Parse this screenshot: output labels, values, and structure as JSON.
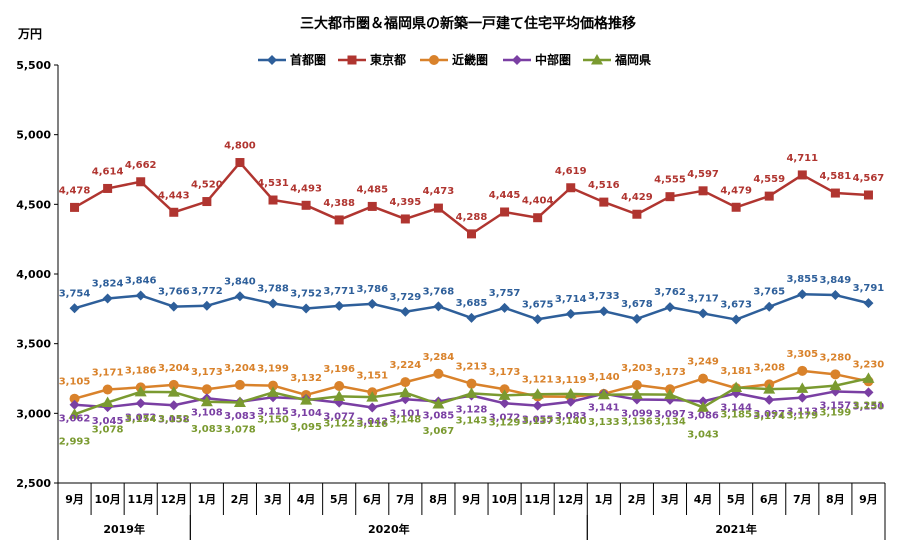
{
  "chart_data": {
    "type": "line",
    "title": "三大都市圏＆福岡県の新築一戸建て住宅平均価格推移",
    "ylabel": "万円",
    "ylim": [
      2500,
      5500
    ],
    "yticks": [
      "2,500",
      "3,000",
      "3,500",
      "4,000",
      "4,500",
      "5,000",
      "5,500"
    ],
    "ytick_values": [
      2500,
      3000,
      3500,
      4000,
      4500,
      5000,
      5500
    ],
    "categories": [
      "9月",
      "10月",
      "11月",
      "12月",
      "1月",
      "2月",
      "3月",
      "4月",
      "5月",
      "6月",
      "7月",
      "8月",
      "9月",
      "10月",
      "11月",
      "12月",
      "1月",
      "2月",
      "3月",
      "4月",
      "5月",
      "6月",
      "7月",
      "8月",
      "9月"
    ],
    "year_groups": [
      {
        "label": "2019年",
        "start": 0,
        "end": 3
      },
      {
        "label": "2020年",
        "start": 4,
        "end": 15
      },
      {
        "label": "2021年",
        "start": 16,
        "end": 24
      }
    ],
    "grid": false,
    "legend_position": "top",
    "series": [
      {
        "name": "首都圏",
        "color": "#2e5f9a",
        "marker": "diamond",
        "values": [
          3754,
          3824,
          3846,
          3766,
          3772,
          3840,
          3788,
          3752,
          3771,
          3786,
          3729,
          3768,
          3685,
          3757,
          3675,
          3714,
          3733,
          3678,
          3762,
          3717,
          3673,
          3765,
          3855,
          3849,
          3791
        ],
        "labels": [
          "3,754",
          "3,824",
          "3,846",
          "3,766",
          "3,772",
          "3,840",
          "3,788",
          "3,752",
          "3,771",
          "3,786",
          "3,729",
          "3,768",
          "3,685",
          "3,757",
          "3,675",
          "3,714",
          "3,733",
          "3,678",
          "3,762",
          "3,717",
          "3,673",
          "3,765",
          "3,855",
          "3,849",
          "3,791"
        ]
      },
      {
        "name": "東京都",
        "color": "#b03530",
        "marker": "square",
        "values": [
          4478,
          4614,
          4662,
          4443,
          4520,
          4800,
          4531,
          4493,
          4388,
          4485,
          4395,
          4473,
          4288,
          4445,
          4404,
          4619,
          4516,
          4429,
          4555,
          4597,
          4479,
          4559,
          4711,
          4581,
          4567
        ],
        "labels": [
          "4,478",
          "4,614",
          "4,662",
          "4,443",
          "4,520",
          "4,800",
          "4,531",
          "4,493",
          "4,388",
          "4,485",
          "4,395",
          "4,473",
          "4,288",
          "4,445",
          "4,404",
          "4,619",
          "4,516",
          "4,429",
          "4,555",
          "4,597",
          "4,479",
          "4,559",
          "4,711",
          "4,581",
          "4,567"
        ]
      },
      {
        "name": "近畿圏",
        "color": "#d9822b",
        "marker": "circle",
        "values": [
          3105,
          3171,
          3186,
          3204,
          3173,
          3204,
          3199,
          3132,
          3196,
          3151,
          3224,
          3284,
          3213,
          3173,
          3121,
          3119,
          3140,
          3203,
          3173,
          3249,
          3181,
          3208,
          3305,
          3280,
          3230
        ],
        "labels": [
          "3,105",
          "3,171",
          "3,186",
          "3,204",
          "3,173",
          "3,204",
          "3,199",
          "3,132",
          "3,196",
          "3,151",
          "3,224",
          "3,284",
          "3,213",
          "3,173",
          "3,121",
          "3,119",
          "3,140",
          "3,203",
          "3,173",
          "3,249",
          "3,181",
          "3,208",
          "3,305",
          "3,280",
          "3,230"
        ]
      },
      {
        "name": "中部圏",
        "color": "#7a3fa3",
        "marker": "diamond",
        "values": [
          3062,
          3045,
          3072,
          3058,
          3108,
          3083,
          3115,
          3104,
          3077,
          3042,
          3101,
          3085,
          3128,
          3072,
          3055,
          3083,
          3141,
          3099,
          3097,
          3086,
          3144,
          3097,
          3113,
          3157,
          3150
        ],
        "labels": [
          "3,062",
          "3,045",
          "3,072",
          "3,058",
          "3,108",
          "3,083",
          "3,115",
          "3,104",
          "3,077",
          "3,042",
          "3,101",
          "3,085",
          "3,128",
          "3,072",
          "3,055",
          "3,083",
          "3,141",
          "3,099",
          "3,097",
          "3,086",
          "3,144",
          "3,097",
          "3,113",
          "3,157",
          "3,150"
        ]
      },
      {
        "name": "福岡県",
        "color": "#7a9a30",
        "marker": "triangle",
        "values": [
          2993,
          3078,
          3154,
          3152,
          3083,
          3078,
          3150,
          3095,
          3122,
          3116,
          3148,
          3067,
          3143,
          3129,
          3137,
          3140,
          3133,
          3136,
          3134,
          3043,
          3185,
          3174,
          3179,
          3199,
          3251
        ],
        "labels": [
          "2,993",
          "3,078",
          "3,154",
          "3,152",
          "3,083",
          "3,078",
          "3,150",
          "3,095",
          "3,122",
          "3,116",
          "3,148",
          "3,067",
          "3,143",
          "3,129",
          "3,137",
          "3,140",
          "3,133",
          "3,136",
          "3,134",
          "3,043",
          "3,185",
          "3,174",
          "3,179",
          "3,199",
          "3,251"
        ]
      }
    ]
  }
}
